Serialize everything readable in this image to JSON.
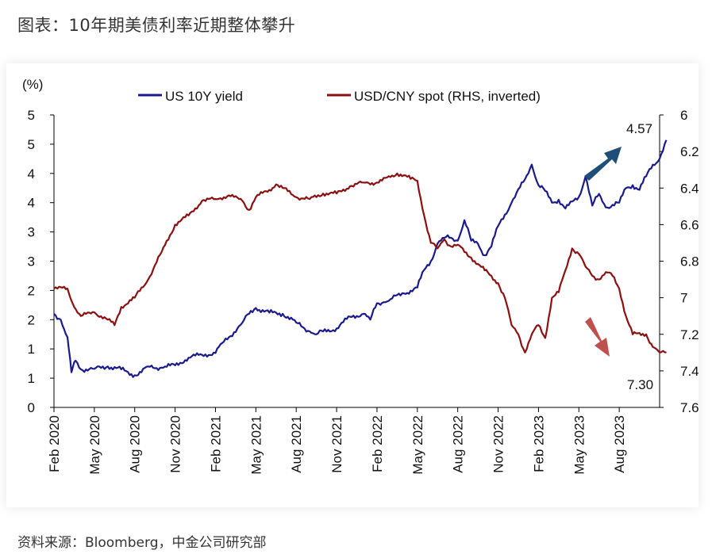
{
  "header": {
    "title": "图表：10年期美债利率近期整体攀升"
  },
  "source": "资料来源：Bloomberg，中金公司研究部",
  "colors": {
    "us10y": "#1a1a8c",
    "usdcny": "#8b1010",
    "arrow_up": "#1f4e79",
    "arrow_down": "#c0504d",
    "axis": "#000000"
  },
  "chart_data": {
    "type": "line",
    "title": "图表：10年期美债利率近期整体攀升",
    "left_axis": {
      "unit_label": "(%)",
      "range": [
        0,
        5
      ],
      "tick_labels": [
        "0",
        "1",
        "1",
        "2",
        "2",
        "3",
        "3",
        "4",
        "4",
        "5",
        "5"
      ]
    },
    "right_axis": {
      "range": [
        6.0,
        7.6
      ],
      "inverted": true,
      "tick_labels": [
        "6",
        "6.2",
        "6.4",
        "6.6",
        "6.8",
        "7",
        "7.2",
        "7.4",
        "7.6"
      ]
    },
    "x_axis": {
      "range_months": [
        0,
        45
      ],
      "tick_labels": [
        "Feb 2020",
        "May 2020",
        "Aug 2020",
        "Nov 2020",
        "Feb 2021",
        "May 2021",
        "Aug 2021",
        "Nov 2021",
        "Feb 2022",
        "May 2022",
        "Aug 2022",
        "Nov 2022",
        "Feb 2023",
        "May 2023",
        "Aug 2023"
      ]
    },
    "legend": {
      "position": "top",
      "items": [
        "US 10Y yield",
        "USD/CNY spot (RHS, inverted)"
      ]
    },
    "series": [
      {
        "name": "US 10Y yield",
        "axis": "left",
        "points": [
          [
            0,
            1.6
          ],
          [
            0.5,
            1.5
          ],
          [
            1,
            1.2
          ],
          [
            1.3,
            0.6
          ],
          [
            1.6,
            0.8
          ],
          [
            2,
            0.65
          ],
          [
            3,
            0.66
          ],
          [
            4,
            0.7
          ],
          [
            5,
            0.65
          ],
          [
            6,
            0.55
          ],
          [
            6.5,
            0.6
          ],
          [
            7,
            0.7
          ],
          [
            8,
            0.68
          ],
          [
            9,
            0.72
          ],
          [
            10,
            0.85
          ],
          [
            11,
            0.9
          ],
          [
            12,
            0.93
          ],
          [
            12.5,
            1.1
          ],
          [
            13,
            1.2
          ],
          [
            14,
            1.45
          ],
          [
            14.5,
            1.6
          ],
          [
            15,
            1.7
          ],
          [
            16,
            1.62
          ],
          [
            17,
            1.6
          ],
          [
            18,
            1.45
          ],
          [
            19,
            1.3
          ],
          [
            19.5,
            1.25
          ],
          [
            20,
            1.3
          ],
          [
            21,
            1.35
          ],
          [
            22,
            1.55
          ],
          [
            23,
            1.6
          ],
          [
            23.5,
            1.5
          ],
          [
            24,
            1.78
          ],
          [
            24.5,
            1.8
          ],
          [
            25,
            1.85
          ],
          [
            26,
            1.95
          ],
          [
            27,
            2.05
          ],
          [
            27.5,
            2.35
          ],
          [
            28,
            2.5
          ],
          [
            28.5,
            2.8
          ],
          [
            29,
            2.9
          ],
          [
            29.5,
            2.9
          ],
          [
            30,
            2.85
          ],
          [
            30.5,
            3.2
          ],
          [
            31,
            2.85
          ],
          [
            31.5,
            2.8
          ],
          [
            32,
            2.6
          ],
          [
            32.5,
            2.75
          ],
          [
            33,
            3.1
          ],
          [
            34,
            3.5
          ],
          [
            35,
            3.9
          ],
          [
            35.5,
            4.15
          ],
          [
            36,
            3.8
          ],
          [
            36.5,
            3.7
          ],
          [
            37,
            3.5
          ],
          [
            37.5,
            3.55
          ],
          [
            38,
            3.4
          ],
          [
            39,
            3.6
          ],
          [
            39.5,
            3.95
          ],
          [
            40,
            3.45
          ],
          [
            40.5,
            3.65
          ],
          [
            41,
            3.42
          ],
          [
            42,
            3.5
          ],
          [
            42.5,
            3.75
          ],
          [
            43,
            3.8
          ],
          [
            43.5,
            3.72
          ],
          [
            44,
            3.95
          ],
          [
            44.5,
            4.15
          ],
          [
            45,
            4.25
          ],
          [
            45.5,
            4.57
          ]
        ]
      },
      {
        "name": "USD/CNY spot (RHS, inverted)",
        "axis": "right",
        "points": [
          [
            0,
            6.95
          ],
          [
            1,
            6.95
          ],
          [
            1.5,
            7.05
          ],
          [
            2,
            7.1
          ],
          [
            3,
            7.08
          ],
          [
            4,
            7.12
          ],
          [
            4.5,
            7.15
          ],
          [
            5,
            7.05
          ],
          [
            6,
            7.0
          ],
          [
            7,
            6.9
          ],
          [
            8,
            6.75
          ],
          [
            9,
            6.6
          ],
          [
            10,
            6.55
          ],
          [
            11,
            6.47
          ],
          [
            12,
            6.46
          ],
          [
            13,
            6.44
          ],
          [
            14,
            6.47
          ],
          [
            14.5,
            6.52
          ],
          [
            15,
            6.45
          ],
          [
            16,
            6.41
          ],
          [
            16.5,
            6.38
          ],
          [
            17,
            6.4
          ],
          [
            18,
            6.45
          ],
          [
            19,
            6.46
          ],
          [
            20,
            6.43
          ],
          [
            21,
            6.43
          ],
          [
            22,
            6.39
          ],
          [
            23,
            6.37
          ],
          [
            24,
            6.37
          ],
          [
            25,
            6.34
          ],
          [
            25.5,
            6.32
          ],
          [
            26,
            6.33
          ],
          [
            26.5,
            6.35
          ],
          [
            27,
            6.36
          ],
          [
            27.5,
            6.55
          ],
          [
            28,
            6.7
          ],
          [
            28.5,
            6.73
          ],
          [
            29,
            6.68
          ],
          [
            29.5,
            6.72
          ],
          [
            30,
            6.71
          ],
          [
            30.5,
            6.75
          ],
          [
            31,
            6.78
          ],
          [
            32,
            6.85
          ],
          [
            33,
            6.92
          ],
          [
            33.5,
            7.0
          ],
          [
            34,
            7.15
          ],
          [
            34.5,
            7.2
          ],
          [
            35,
            7.3
          ],
          [
            35.5,
            7.2
          ],
          [
            36,
            7.15
          ],
          [
            36.5,
            7.22
          ],
          [
            37,
            7.0
          ],
          [
            37.5,
            6.97
          ],
          [
            38,
            6.85
          ],
          [
            38.5,
            6.73
          ],
          [
            39,
            6.76
          ],
          [
            39.5,
            6.83
          ],
          [
            40,
            6.88
          ],
          [
            40.5,
            6.9
          ],
          [
            41,
            6.86
          ],
          [
            41.5,
            6.88
          ],
          [
            42,
            6.95
          ],
          [
            42.5,
            7.1
          ],
          [
            43,
            7.2
          ],
          [
            44,
            7.2
          ],
          [
            44.5,
            7.27
          ],
          [
            45,
            7.3
          ],
          [
            45.5,
            7.3
          ]
        ]
      }
    ],
    "annotations": [
      {
        "text": "4.57",
        "series": "US 10Y yield",
        "direction": "up"
      },
      {
        "text": "7.30",
        "series": "USD/CNY spot (RHS, inverted)",
        "direction": "down"
      }
    ]
  }
}
